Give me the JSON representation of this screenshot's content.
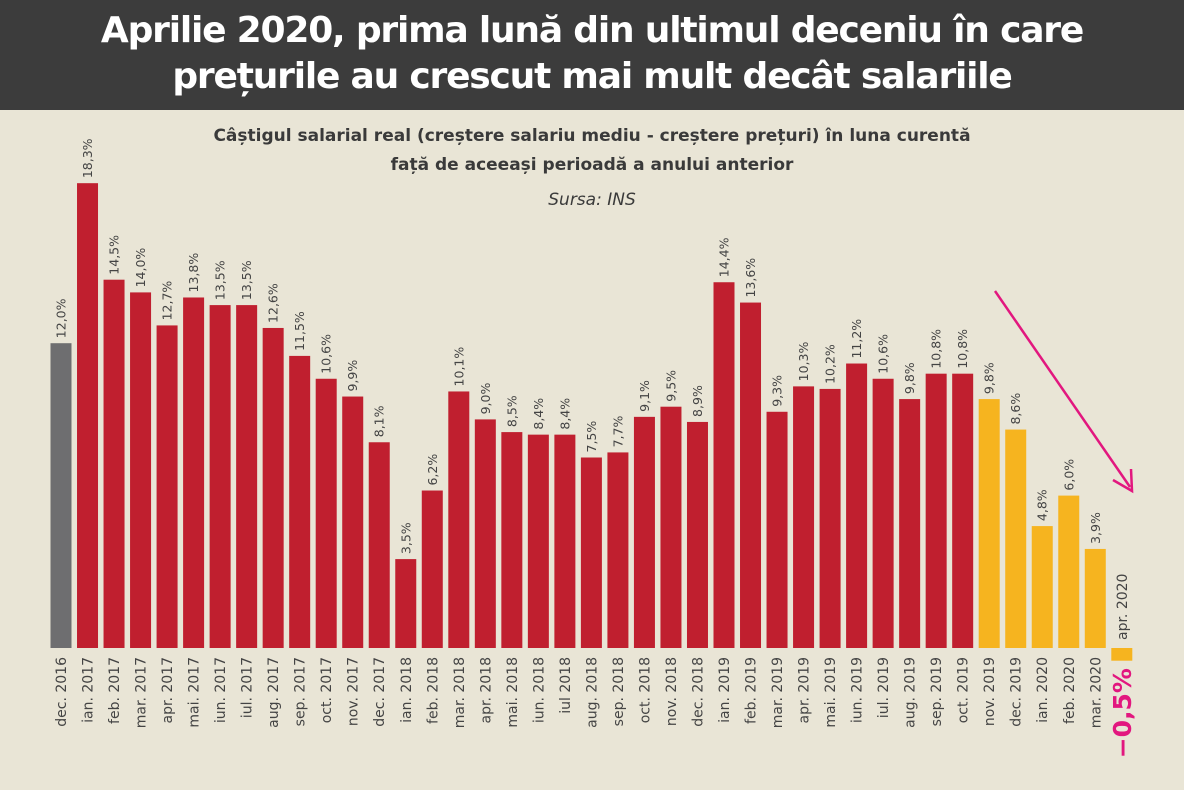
{
  "header": {
    "title_line1": "Aprilie 2020, prima lună din ultimul deceniu în care",
    "title_line2": "prețurile au crescut mai mult decât salariile"
  },
  "chart_data": {
    "type": "bar",
    "title": "Câștigul salarial real (creștere salariu mediu - creștere prețuri) în luna curentă",
    "subtitle": "față de aceeași perioadă a anului anterior",
    "source": "Sursa: INS",
    "xlabel": "",
    "ylabel": "",
    "unit": "%",
    "grid": false,
    "legend": "none",
    "categories": [
      "dec. 2016",
      "ian. 2017",
      "feb. 2017",
      "mar. 2017",
      "apr. 2017",
      "mai. 2017",
      "iun. 2017",
      "iul. 2017",
      "aug. 2017",
      "sep. 2017",
      "oct. 2017",
      "nov. 2017",
      "dec. 2017",
      "ian. 2018",
      "feb. 2018",
      "mar. 2018",
      "apr. 2018",
      "mai. 2018",
      "iun. 2018",
      "iul 2018",
      "aug. 2018",
      "sep. 2018",
      "oct. 2018",
      "nov. 2018",
      "dec. 2018",
      "ian. 2019",
      "feb. 2019",
      "mar. 2019",
      "apr. 2019",
      "mai. 2019",
      "iun. 2019",
      "iul. 2019",
      "aug. 2019",
      "sep. 2019",
      "oct. 2019",
      "nov. 2019",
      "dec. 2019",
      "ian. 2020",
      "feb. 2020",
      "mar. 2020",
      "apr. 2020"
    ],
    "values": [
      12.0,
      18.3,
      14.5,
      14.0,
      12.7,
      13.8,
      13.5,
      13.5,
      12.6,
      11.5,
      10.6,
      9.9,
      8.1,
      3.5,
      6.2,
      10.1,
      9.0,
      8.5,
      8.4,
      8.4,
      7.5,
      7.7,
      9.1,
      9.5,
      8.9,
      14.4,
      13.6,
      9.3,
      10.3,
      10.2,
      11.2,
      10.6,
      9.8,
      10.8,
      10.8,
      9.8,
      8.6,
      4.8,
      6.0,
      3.9,
      -0.5
    ],
    "value_labels": [
      "12,0%",
      "18,3%",
      "14,5%",
      "14,0%",
      "12,7%",
      "13,8%",
      "13,5%",
      "13,5%",
      "12,6%",
      "11,5%",
      "10,6%",
      "9,9%",
      "8,1%",
      "3,5%",
      "6,2%",
      "10,1%",
      "9,0%",
      "8,5%",
      "8,4%",
      "8,4%",
      "7,5%",
      "7,7%",
      "9,1%",
      "9,5%",
      "8,9%",
      "14,4%",
      "13,6%",
      "9,3%",
      "10,3%",
      "10,2%",
      "11,2%",
      "10,6%",
      "9,8%",
      "10,8%",
      "10,8%",
      "9,8%",
      "8,6%",
      "4,8%",
      "6,0%",
      "3,9%",
      "−0,5%"
    ],
    "ylim": [
      -0.5,
      18.3
    ],
    "colors": {
      "first": "#6e6e70",
      "main": "#c01f2f",
      "recent": "#f6b41f",
      "highlight": "#e2177f",
      "text": "#444444"
    },
    "color_groups": {
      "gray": [
        "dec. 2016"
      ],
      "yellow_from": "nov. 2019"
    },
    "annotation": "downward trend arrow over nov. 2019 – apr. 2020"
  }
}
